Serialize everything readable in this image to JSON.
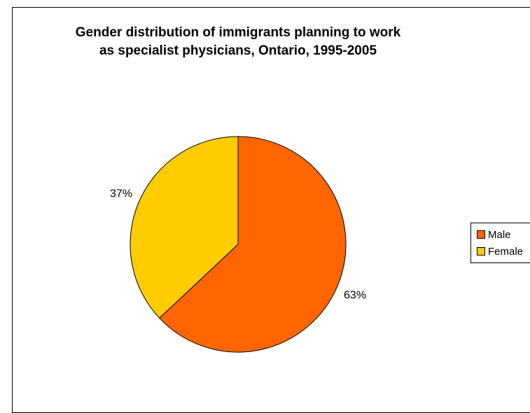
{
  "chart_data": {
    "type": "pie",
    "title_lines": [
      "Gender distribution of immigrants planning to work",
      "as specialist physicians, Ontario, 1995-2005"
    ],
    "categories": [
      "Male",
      "Female"
    ],
    "values": [
      63,
      37
    ],
    "data_labels": [
      "63%",
      "37%"
    ],
    "colors": [
      "#FF6600",
      "#FFCC00"
    ],
    "legend_position": "right"
  }
}
